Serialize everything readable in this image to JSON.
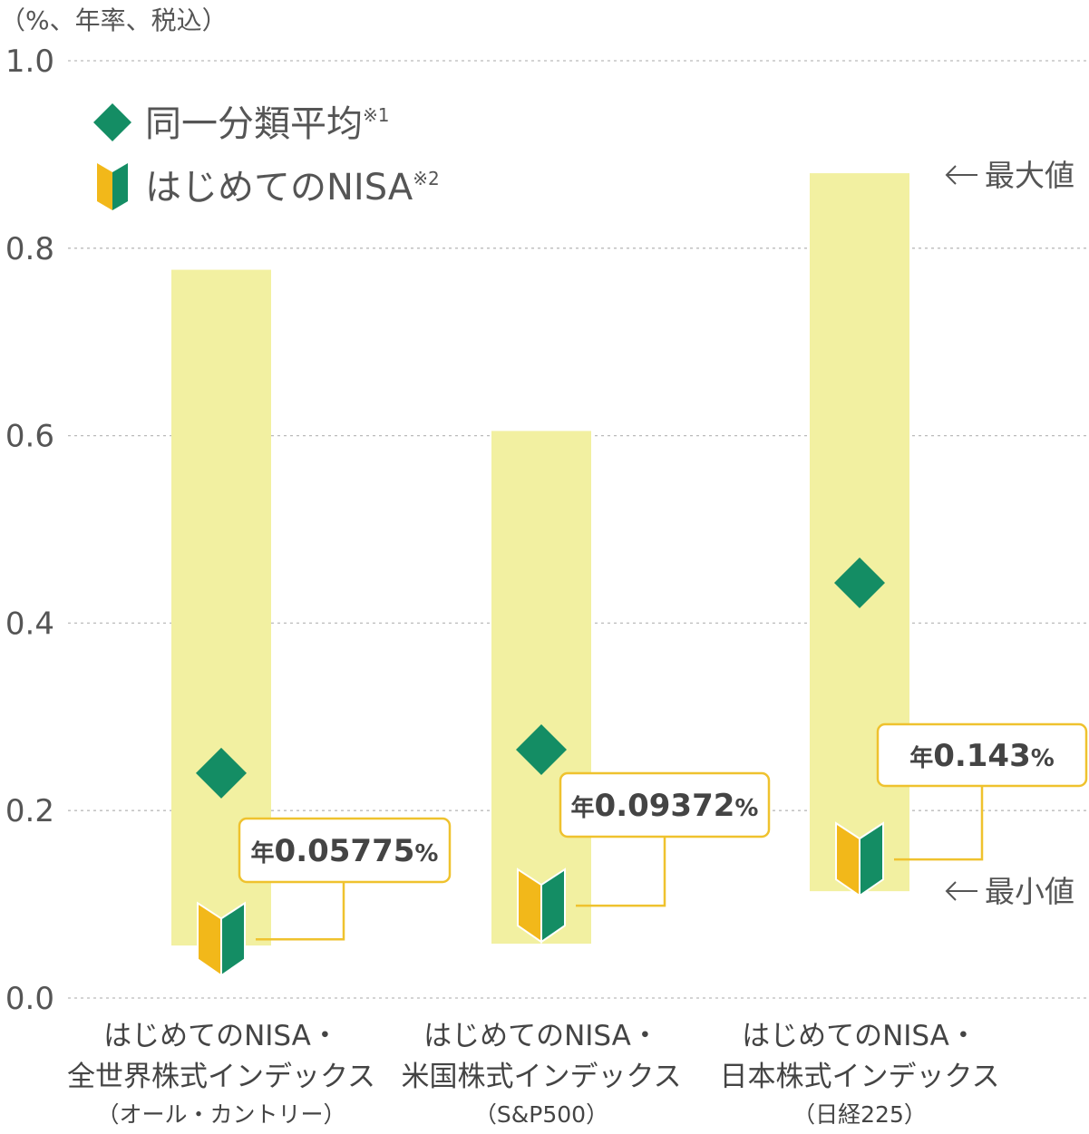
{
  "chart_data": {
    "type": "range-bar",
    "unit_label": "（%、年率、税込）",
    "ylim": [
      0,
      1.0
    ],
    "yticks": [
      "0.0",
      "0.2",
      "0.4",
      "0.6",
      "0.8",
      "1.0"
    ],
    "grid": "horizontal-dashed",
    "legend": {
      "placement": "top-left",
      "items": [
        {
          "label": "同一分類平均",
          "note": "※1",
          "icon": "green-diamond"
        },
        {
          "label": "はじめてのNISA",
          "note": "※2",
          "icon": "beginner-mark"
        }
      ]
    },
    "annotations": {
      "max_label": "最大値",
      "min_label": "最小値"
    },
    "categories": [
      {
        "lines": [
          "はじめてのNISA・",
          "全世界株式インデックス"
        ],
        "sub": "（オール・カントリー）",
        "range": [
          0.056,
          0.777
        ],
        "average": 0.24,
        "fund_value": 0.05775,
        "callout": {
          "prefix": "年",
          "value": "0.05775",
          "suffix": "%"
        }
      },
      {
        "lines": [
          "はじめてのNISA・",
          "米国株式インデックス"
        ],
        "sub": "（S&P500）",
        "range": [
          0.058,
          0.605
        ],
        "average": 0.265,
        "fund_value": 0.09372,
        "callout": {
          "prefix": "年",
          "value": "0.09372",
          "suffix": "%"
        }
      },
      {
        "lines": [
          "はじめてのNISA・",
          "日本株式インデックス"
        ],
        "sub": "（日経225）",
        "range": [
          0.114,
          0.88
        ],
        "average": 0.443,
        "fund_value": 0.143,
        "callout": {
          "prefix": "年",
          "value": "0.143",
          "suffix": "%"
        }
      }
    ]
  },
  "colors": {
    "range_bar": "#f2f0a1",
    "diamond": "#148d64",
    "mark_yellow": "#f2b81a",
    "mark_green": "#148d64",
    "callout_border": "#efc22e",
    "grid": "#bbbbbb"
  }
}
